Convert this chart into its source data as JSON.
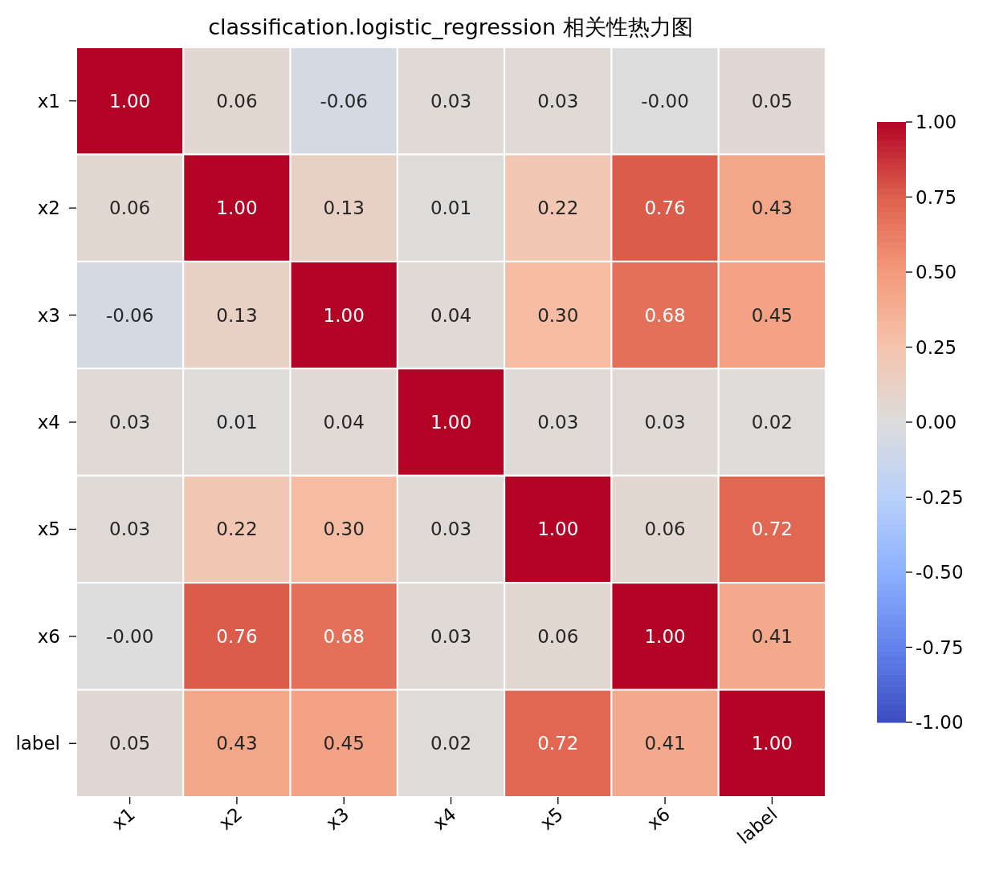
{
  "chart_data": {
    "type": "heatmap",
    "title": "classification.logistic_regression 相关性热力图",
    "categories": [
      "x1",
      "x2",
      "x3",
      "x4",
      "x5",
      "x6",
      "label"
    ],
    "y_categories": [
      "x1",
      "x2",
      "x3",
      "x4",
      "x5",
      "x6",
      "label"
    ],
    "cells": [
      [
        1.0,
        0.06,
        -0.06,
        0.03,
        0.03,
        0.0,
        0.05
      ],
      [
        0.06,
        1.0,
        0.13,
        0.01,
        0.22,
        0.76,
        0.43
      ],
      [
        -0.06,
        0.13,
        1.0,
        0.04,
        0.3,
        0.68,
        0.45
      ],
      [
        0.03,
        0.01,
        0.04,
        1.0,
        0.03,
        0.03,
        0.02
      ],
      [
        0.03,
        0.22,
        0.3,
        0.03,
        1.0,
        0.06,
        0.72
      ],
      [
        0.0,
        0.76,
        0.68,
        0.03,
        0.06,
        1.0,
        0.41
      ],
      [
        0.05,
        0.43,
        0.45,
        0.02,
        0.72,
        0.41,
        1.0
      ]
    ],
    "cell_labels": [
      [
        "1.00",
        "0.06",
        "-0.06",
        "0.03",
        "0.03",
        "-0.00",
        "0.05"
      ],
      [
        "0.06",
        "1.00",
        "0.13",
        "0.01",
        "0.22",
        "0.76",
        "0.43"
      ],
      [
        "-0.06",
        "0.13",
        "1.00",
        "0.04",
        "0.30",
        "0.68",
        "0.45"
      ],
      [
        "0.03",
        "0.01",
        "0.04",
        "1.00",
        "0.03",
        "0.03",
        "0.02"
      ],
      [
        "0.03",
        "0.22",
        "0.30",
        "0.03",
        "1.00",
        "0.06",
        "0.72"
      ],
      [
        "-0.00",
        "0.76",
        "0.68",
        "0.03",
        "0.06",
        "1.00",
        "0.41"
      ],
      [
        "0.05",
        "0.43",
        "0.45",
        "0.02",
        "0.72",
        "0.41",
        "1.00"
      ]
    ],
    "clim": [
      -1,
      1
    ],
    "cticks": [
      {
        "value": -1,
        "label": "-1.00"
      },
      {
        "value": -0.75,
        "label": "-0.75"
      },
      {
        "value": -0.5,
        "label": "-0.50"
      },
      {
        "value": -0.25,
        "label": "-0.25"
      },
      {
        "value": 0,
        "label": "0.00"
      },
      {
        "value": 0.25,
        "label": "0.25"
      },
      {
        "value": 0.5,
        "label": "0.50"
      },
      {
        "value": 0.75,
        "label": "0.75"
      },
      {
        "value": 1,
        "label": "1.00"
      }
    ]
  }
}
